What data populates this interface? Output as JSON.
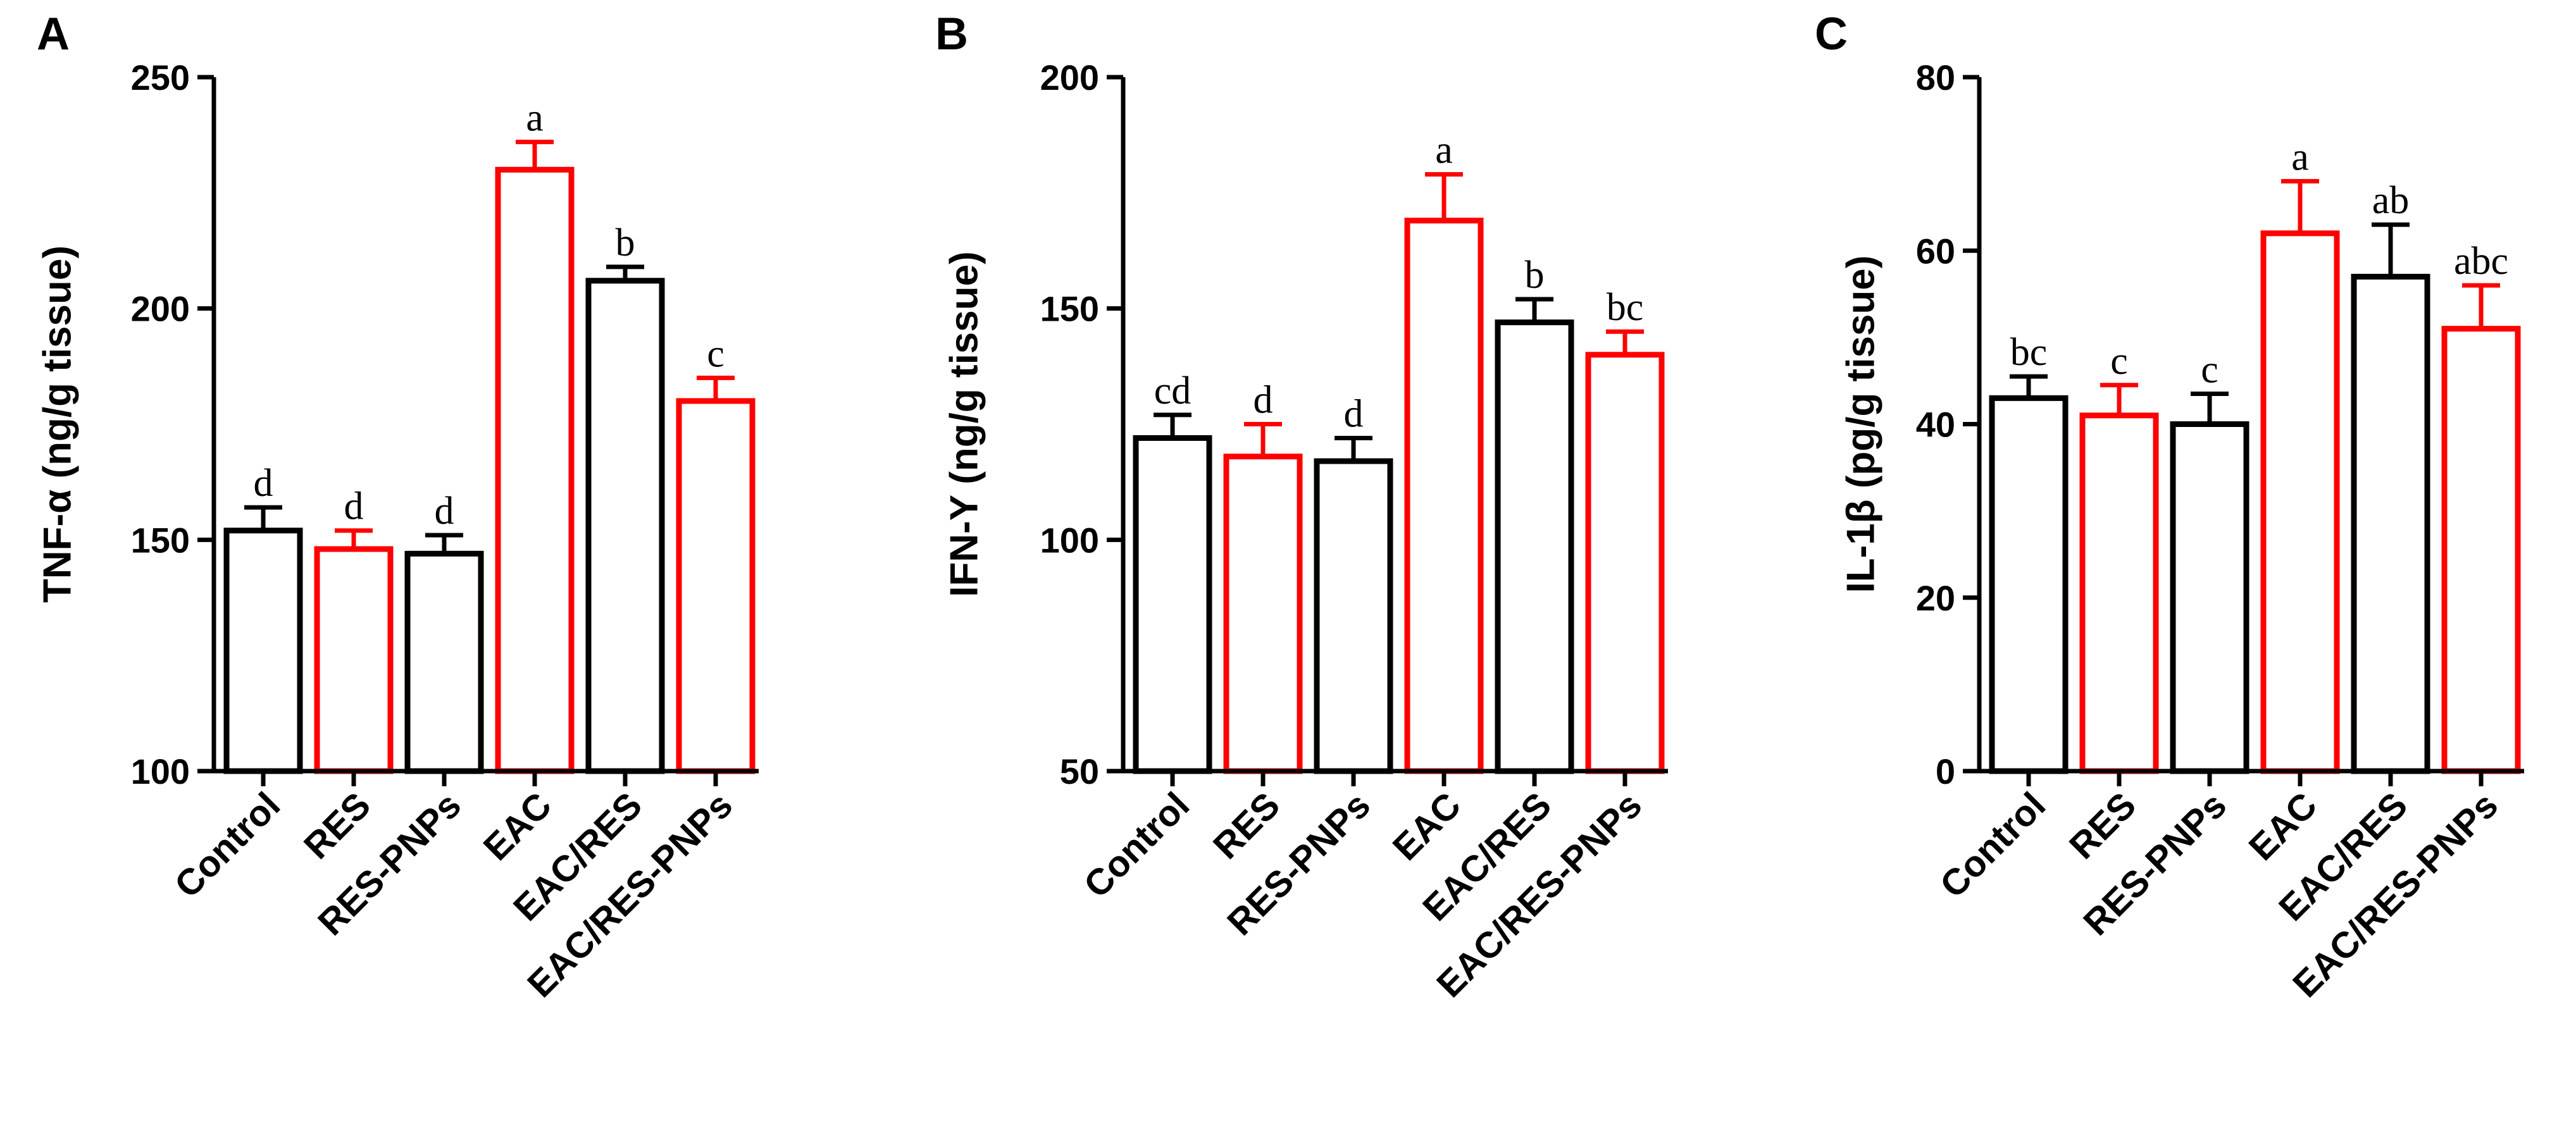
{
  "chart_data": [
    {
      "type": "bar",
      "panel": "A",
      "ylabel": "TNF-α (ng/g tissue)",
      "ylim": [
        100,
        250
      ],
      "yticks": [
        100,
        150,
        200,
        250
      ],
      "categories": [
        "Control",
        "RES",
        "RES-PNPs",
        "EAC",
        "EAC/RES",
        "EAC/RES-PNPs"
      ],
      "values": [
        152,
        148,
        147,
        230,
        206,
        180
      ],
      "errors": [
        5,
        4,
        4,
        6,
        3,
        5
      ],
      "significance": [
        "d",
        "d",
        "d",
        "a",
        "b",
        "c"
      ],
      "bar_colors": [
        "#000000",
        "#ff0000",
        "#000000",
        "#ff0000",
        "#000000",
        "#ff0000"
      ]
    },
    {
      "type": "bar",
      "panel": "B",
      "ylabel": "IFN-Y (ng/g tissue)",
      "ylim": [
        50,
        200
      ],
      "yticks": [
        50,
        100,
        150,
        200
      ],
      "categories": [
        "Control",
        "RES",
        "RES-PNPs",
        "EAC",
        "EAC/RES",
        "EAC/RES-PNPs"
      ],
      "values": [
        122,
        118,
        117,
        169,
        147,
        140
      ],
      "errors": [
        5,
        7,
        5,
        10,
        5,
        5
      ],
      "significance": [
        "cd",
        "d",
        "d",
        "a",
        "b",
        "bc"
      ],
      "bar_colors": [
        "#000000",
        "#ff0000",
        "#000000",
        "#ff0000",
        "#000000",
        "#ff0000"
      ]
    },
    {
      "type": "bar",
      "panel": "C",
      "ylabel": "IL-1β (pg/g tissue)",
      "ylim": [
        0,
        80
      ],
      "yticks": [
        0,
        20,
        40,
        60,
        80
      ],
      "categories": [
        "Control",
        "RES",
        "RES-PNPs",
        "EAC",
        "EAC/RES",
        "EAC/RES-PNPs"
      ],
      "values": [
        43,
        41,
        40,
        62,
        57,
        51
      ],
      "errors": [
        2.5,
        3.5,
        3.5,
        6,
        6,
        5
      ],
      "significance": [
        "bc",
        "c",
        "c",
        "a",
        "ab",
        "abc"
      ],
      "bar_colors": [
        "#000000",
        "#ff0000",
        "#000000",
        "#ff0000",
        "#000000",
        "#ff0000"
      ]
    }
  ]
}
